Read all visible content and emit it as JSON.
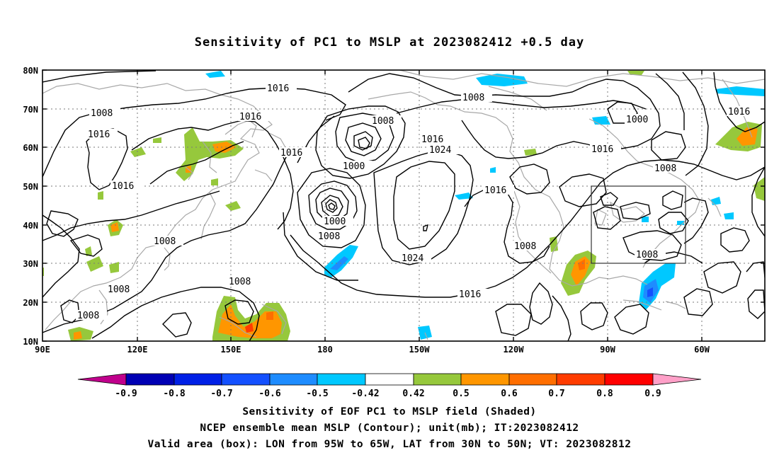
{
  "title": "Sensitivity of PC1 to MSLP at 2023082412 +0.5 day",
  "axes": {
    "lat_labels": [
      "80N",
      "70N",
      "60N",
      "50N",
      "40N",
      "30N",
      "20N",
      "10N"
    ],
    "lon_labels": [
      "90E",
      "120E",
      "150E",
      "180",
      "150W",
      "120W",
      "90W",
      "60W"
    ]
  },
  "contour_labels": {
    "c01": "1016",
    "c02": "1008",
    "c03": "1016",
    "c04": "1008",
    "c05": "1016",
    "c06": "1016",
    "c07": "1008",
    "c08": "1000",
    "c09": "1016",
    "c10": "1024",
    "c11": "1008",
    "c12": "1000",
    "c13": "1016",
    "c14": "1016",
    "c15": "1000",
    "c16": "1008",
    "c17": "1008",
    "c18": "1024",
    "c19": "1008",
    "c20": "1016",
    "c21": "1016",
    "c22": "1008",
    "c23": "1008",
    "c24": "1008",
    "c25": "1016",
    "c26": "1008"
  },
  "valid_box": {
    "lon_from": "95W",
    "lon_to": "65W",
    "lat_from": "30N",
    "lat_to": "50N"
  },
  "colorbar": {
    "labels": [
      "-0.9",
      "-0.8",
      "-0.7",
      "-0.6",
      "-0.5",
      "-0.42",
      "0.42",
      "0.5",
      "0.6",
      "0.7",
      "0.8",
      "0.9"
    ],
    "colors": {
      "lt_-0.9": "#c0008c",
      "-0.9_-0.8": "#0000b4",
      "-0.8_-0.7": "#0020e6",
      "-0.7_-0.6": "#1450ff",
      "-0.6_-0.5": "#1e8cff",
      "-0.5_-0.42": "#00c8ff",
      "-0.42_0.42": "#ffffff",
      "0.42_0.5": "#96c83c",
      "0.5_0.6": "#ff9600",
      "0.6_0.7": "#ff6e00",
      "0.7_0.8": "#ff3c00",
      "0.8_0.9": "#ff0000",
      "gt_0.9": "#ffa0c8"
    }
  },
  "captions": {
    "line1": "Sensitivity of EOF PC1 to MSLP field (Shaded)",
    "line2": "NCEP ensemble mean MSLP (Contour); unit(mb); IT:2023082412",
    "line3": "Valid area (box): LON from 95W to 65W, LAT from 30N to 50N; VT: 2023082812"
  }
}
